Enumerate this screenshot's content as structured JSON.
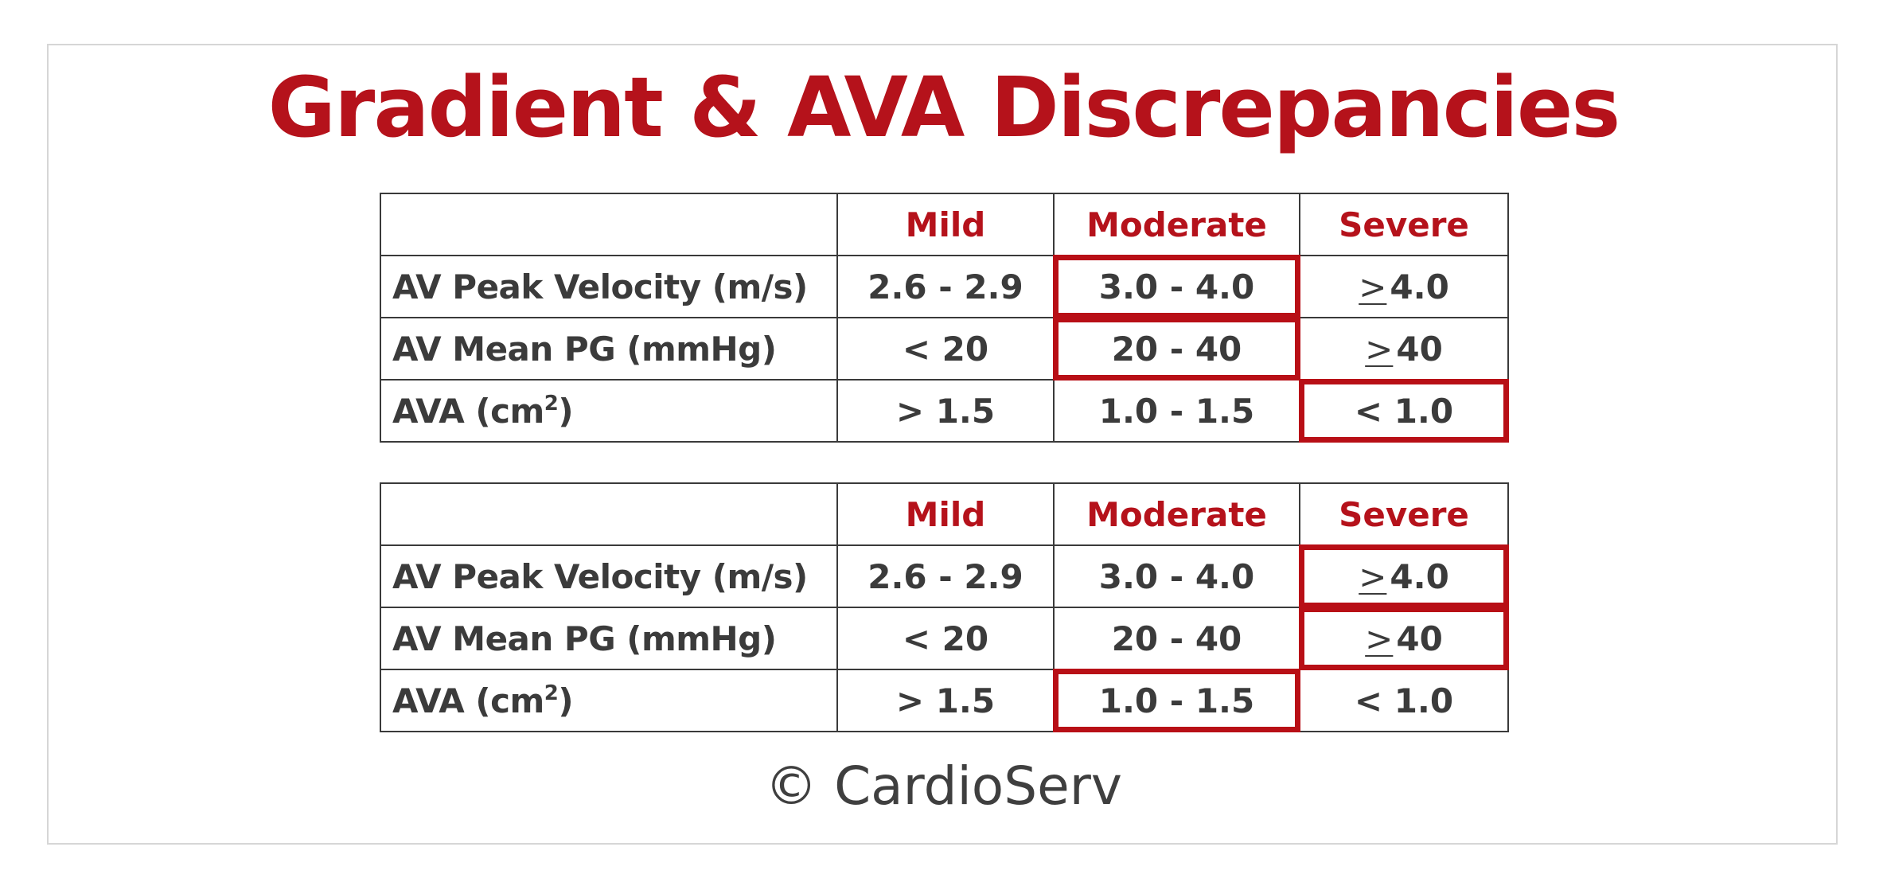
{
  "title": "Gradient & AVA Discrepancies",
  "colors": {
    "accent": "#b5121b",
    "text": "#3b3b3b",
    "highlight_border": "#b80f16",
    "frame_border": "#d6d6d6"
  },
  "tables": [
    {
      "headers": [
        "",
        "Mild",
        "Moderate",
        "Severe"
      ],
      "rows": [
        {
          "label": "AV Peak Velocity (m/s)",
          "mild": "2.6 - 2.9",
          "moderate": "3.0 - 4.0",
          "severe_symbol": ">",
          "severe_value": "4.0",
          "highlighted": "moderate"
        },
        {
          "label": "AV Mean PG (mmHg)",
          "mild": "< 20",
          "moderate": "20 - 40",
          "severe_symbol": ">",
          "severe_value": "40",
          "highlighted": "moderate"
        },
        {
          "label_base": "AVA (cm",
          "label_sup": "2",
          "label_end": ")",
          "mild": "> 1.5",
          "moderate": "1.0 - 1.5",
          "severe_value": "< 1.0",
          "highlighted": "severe"
        }
      ]
    },
    {
      "headers": [
        "",
        "Mild",
        "Moderate",
        "Severe"
      ],
      "rows": [
        {
          "label": "AV Peak Velocity (m/s)",
          "mild": "2.6 - 2.9",
          "moderate": "3.0 - 4.0",
          "severe_symbol": ">",
          "severe_value": "4.0",
          "highlighted": "severe"
        },
        {
          "label": "AV Mean PG (mmHg)",
          "mild": "< 20",
          "moderate": "20 - 40",
          "severe_symbol": ">",
          "severe_value": "40",
          "highlighted": "severe"
        },
        {
          "label_base": "AVA (cm",
          "label_sup": "2",
          "label_end": ")",
          "mild": "> 1.5",
          "moderate": "1.0 - 1.5",
          "severe_value": "< 1.0",
          "highlighted": "moderate"
        }
      ]
    }
  ],
  "copyright": "© CardioServ"
}
